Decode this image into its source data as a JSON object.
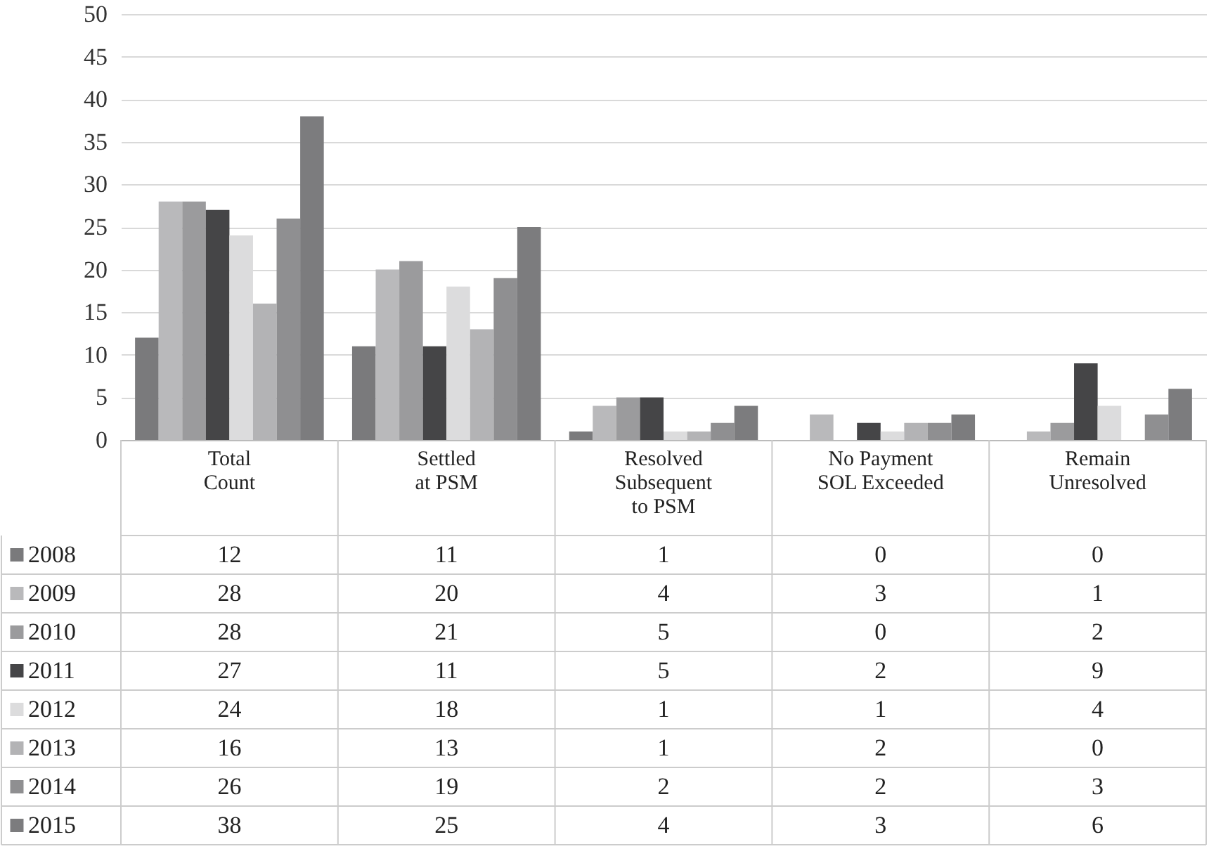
{
  "chart_data": {
    "type": "bar",
    "categories": [
      "Total\nCount",
      "Settled\nat PSM",
      "Resolved\nSubsequent\nto PSM",
      "No Payment\nSOL Exceeded",
      "Remain\nUnresolved"
    ],
    "series": [
      {
        "name": "2008",
        "color": "#7a7a7c",
        "values": [
          12,
          11,
          1,
          0,
          0
        ]
      },
      {
        "name": "2009",
        "color": "#b9b9bb",
        "values": [
          28,
          20,
          4,
          3,
          1
        ]
      },
      {
        "name": "2010",
        "color": "#9b9b9d",
        "values": [
          28,
          21,
          5,
          0,
          2
        ]
      },
      {
        "name": "2011",
        "color": "#454547",
        "values": [
          27,
          11,
          5,
          2,
          9
        ]
      },
      {
        "name": "2012",
        "color": "#dcdcdd",
        "values": [
          24,
          18,
          1,
          1,
          4
        ]
      },
      {
        "name": "2013",
        "color": "#b3b3b5",
        "values": [
          16,
          13,
          1,
          2,
          0
        ]
      },
      {
        "name": "2014",
        "color": "#8f8f91",
        "values": [
          26,
          19,
          2,
          2,
          3
        ]
      },
      {
        "name": "2015",
        "color": "#7c7c7e",
        "values": [
          38,
          25,
          4,
          3,
          6
        ]
      }
    ],
    "ylim": [
      0,
      50
    ],
    "yticks": [
      0,
      5,
      10,
      15,
      20,
      25,
      30,
      35,
      40,
      45,
      50
    ],
    "grid": "y",
    "data_labels": true,
    "legend": "bottom left"
  }
}
